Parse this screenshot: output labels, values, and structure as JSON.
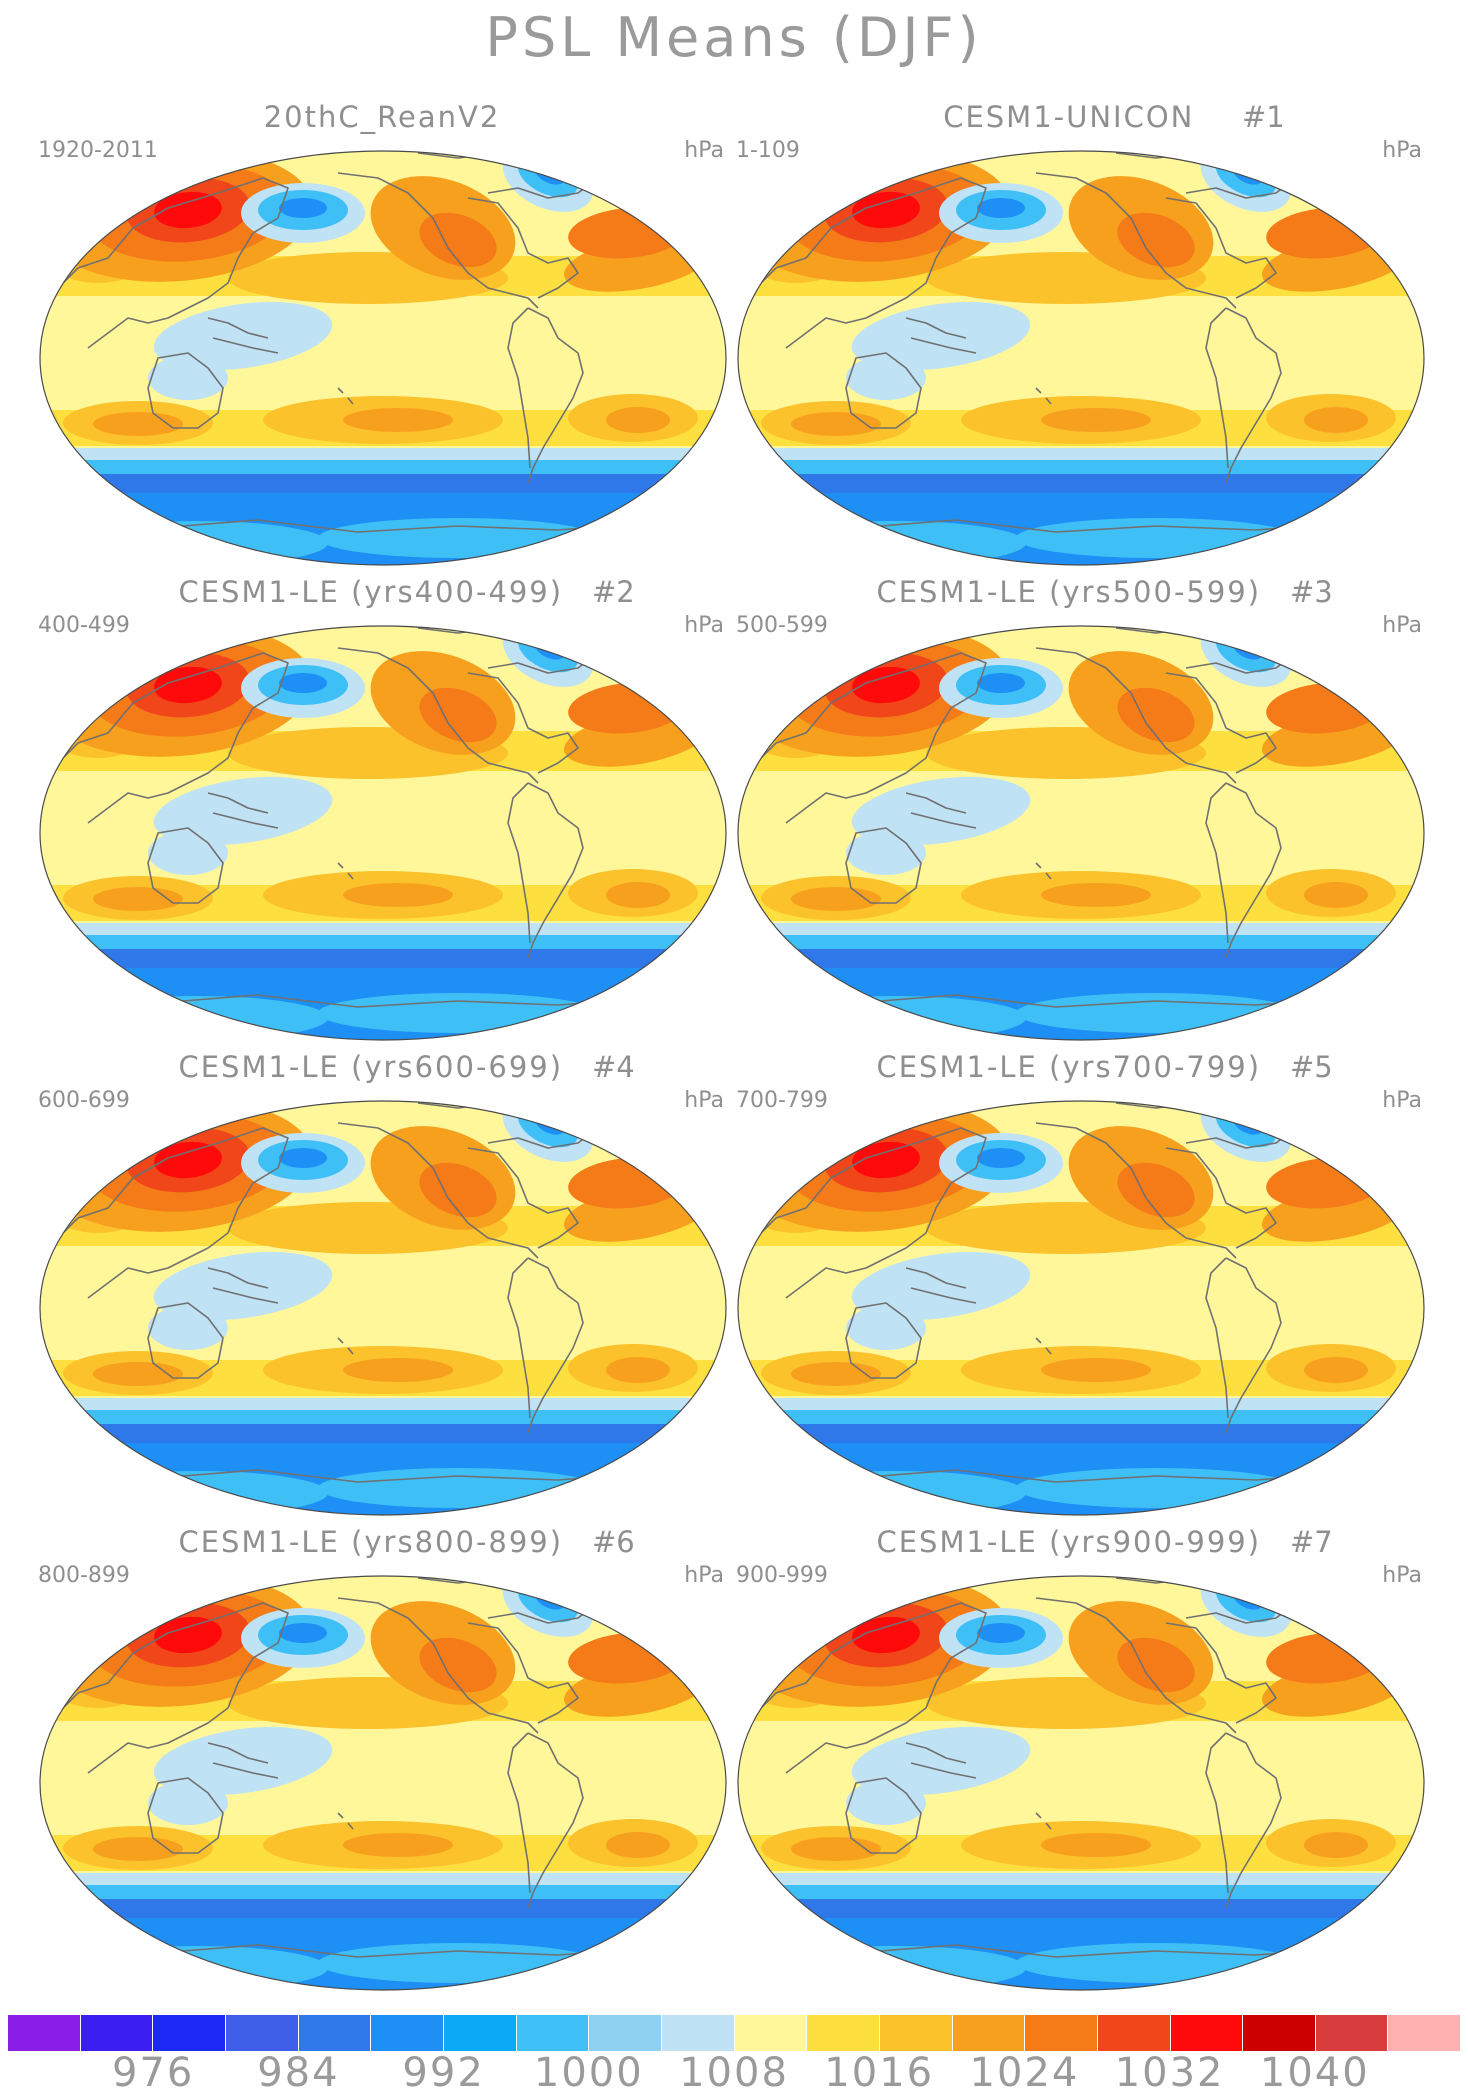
{
  "figure": {
    "title": "PSL Means (DJF)"
  },
  "panels": [
    {
      "title": "20thC_ReanV2",
      "number": "",
      "years": "1920-2011",
      "units": "hPa"
    },
    {
      "title": "CESM1-UNICON",
      "number": "#1",
      "years": "1-109",
      "units": "hPa"
    },
    {
      "title": "CESM1-LE (yrs400-499)",
      "number": "#2",
      "years": "400-499",
      "units": "hPa"
    },
    {
      "title": "CESM1-LE (yrs500-599)",
      "number": "#3",
      "years": "500-599",
      "units": "hPa"
    },
    {
      "title": "CESM1-LE (yrs600-699)",
      "number": "#4",
      "years": "600-699",
      "units": "hPa"
    },
    {
      "title": "CESM1-LE (yrs700-799)",
      "number": "#5",
      "years": "700-799",
      "units": "hPa"
    },
    {
      "title": "CESM1-LE (yrs800-899)",
      "number": "#6",
      "years": "800-899",
      "units": "hPa"
    },
    {
      "title": "CESM1-LE (yrs900-999)",
      "number": "#7",
      "years": "900-999",
      "units": "hPa"
    }
  ],
  "colorbar": {
    "colors": [
      "#8a1ee6",
      "#3b1ef0",
      "#1c28f5",
      "#3f5ee8",
      "#2f78ea",
      "#1e8ff5",
      "#0aaaf5",
      "#3ec0f7",
      "#8ed0ef",
      "#bfe2f5",
      "#fff79a",
      "#fde040",
      "#fcc22c",
      "#f7a01e",
      "#f57a18",
      "#f0461a",
      "#ff0a0a",
      "#cc0000",
      "#d83c3c",
      "#ffb0b0"
    ],
    "tick_labels": [
      "976",
      "984",
      "992",
      "1000",
      "1008",
      "1016",
      "1024",
      "1032",
      "1040"
    ]
  },
  "map_colors": {
    "background": "#fff79a",
    "low_light": "#bfe2f5",
    "low_mid": "#3ec0f7",
    "low_deep": "#1e8ff5",
    "low_deeper": "#2f78ea",
    "high_1": "#fde040",
    "high_2": "#fcc22c",
    "high_3": "#f7a01e",
    "high_4": "#f57a18",
    "high_5": "#f0461a",
    "high_6": "#ff0a0a",
    "coast": "#707070"
  }
}
